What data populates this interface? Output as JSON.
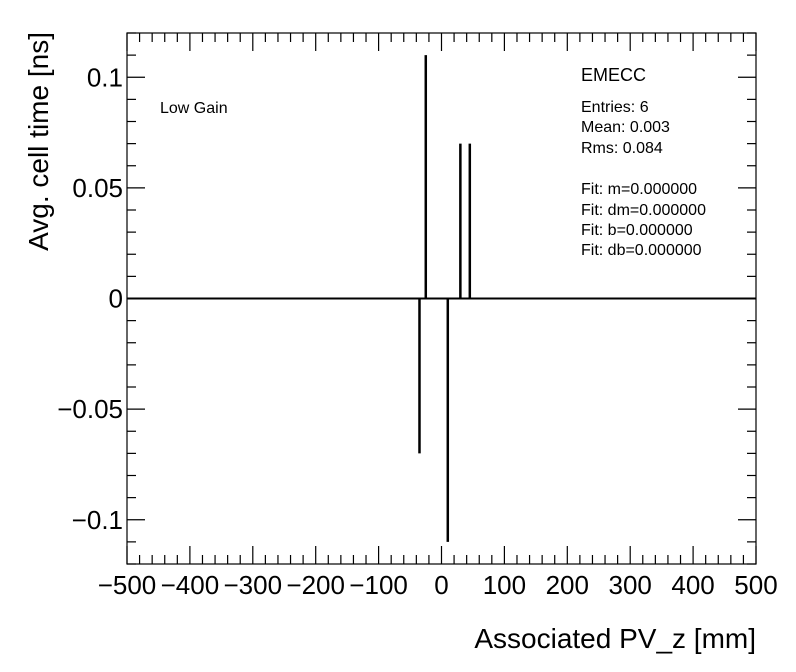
{
  "chart_data": {
    "type": "bar",
    "xlabel": "Associated PV_z [mm]",
    "ylabel": "Avg. cell time [ns]",
    "xlim": [
      -500,
      500
    ],
    "ylim": [
      -0.12,
      0.12
    ],
    "x_ticks": [
      -500,
      -400,
      -300,
      -200,
      -100,
      0,
      100,
      200,
      300,
      400,
      500
    ],
    "x_tick_labels": [
      "−500",
      "−400",
      "−300",
      "−200",
      "−100",
      "0",
      "100",
      "200",
      "300",
      "400",
      "500"
    ],
    "y_ticks": [
      -0.1,
      -0.05,
      0,
      0.05,
      0.1
    ],
    "y_tick_labels": [
      "−0.1",
      "−0.05",
      "0",
      "0.05",
      "0.1"
    ],
    "x": [
      -35,
      -25,
      10,
      30,
      45
    ],
    "values": [
      -0.07,
      0.11,
      -0.11,
      0.07,
      0.07
    ],
    "annotation": "Low Gain",
    "stats": {
      "title": "EMECC",
      "lines": [
        "Entries: 6",
        "Mean: 0.003",
        "Rms: 0.084"
      ],
      "fit_lines": [
        "Fit: m=0.000000",
        "Fit: dm=0.000000",
        "Fit: b=0.000000",
        "Fit: db=0.000000"
      ]
    }
  }
}
